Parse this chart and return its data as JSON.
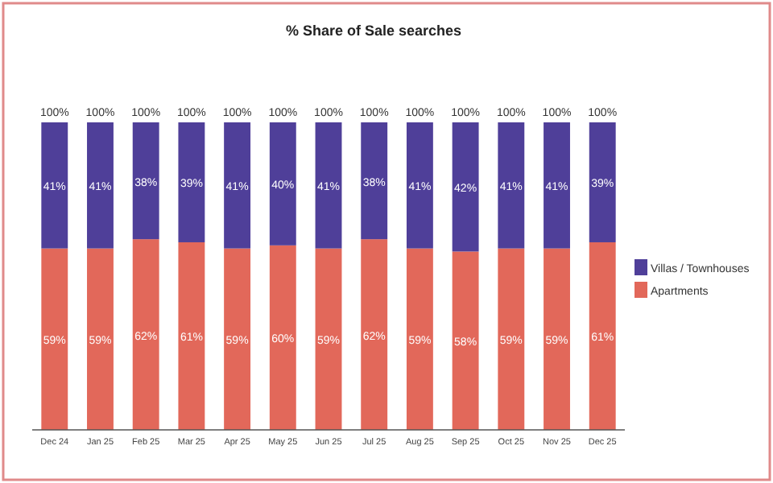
{
  "chart_data": {
    "type": "bar",
    "title": "% Share of Sale searches",
    "stacked": true,
    "legend": "right",
    "categories": [
      "Dec 24",
      "Jan 25",
      "Feb 25",
      "Mar 25",
      "Apr 25",
      "May 25",
      "Jun 25",
      "Jul 25",
      "Aug 25",
      "Sep 25",
      "Oct 25",
      "Nov 25",
      "Dec 25"
    ],
    "series": [
      {
        "name": "Apartments",
        "color": "#e2685a",
        "values": [
          59,
          59,
          62,
          61,
          59,
          60,
          59,
          62,
          59,
          58,
          59,
          59,
          61
        ],
        "value_labels": [
          "59%",
          "59%",
          "62%",
          "61%",
          "59%",
          "60%",
          "59%",
          "62%",
          "59%",
          "58%",
          "59%",
          "59%",
          "61%"
        ]
      },
      {
        "name": "Villas / Townhouses",
        "color": "#4f3f99",
        "values": [
          41,
          41,
          38,
          39,
          41,
          40,
          41,
          38,
          41,
          42,
          41,
          41,
          39
        ],
        "value_labels": [
          "41%",
          "41%",
          "38%",
          "39%",
          "41%",
          "40%",
          "41%",
          "38%",
          "41%",
          "42%",
          "41%",
          "41%",
          "39%"
        ]
      }
    ],
    "totals": [
      "100%",
      "100%",
      "100%",
      "100%",
      "100%",
      "100%",
      "100%",
      "100%",
      "100%",
      "100%",
      "100%",
      "100%",
      "100%"
    ]
  }
}
